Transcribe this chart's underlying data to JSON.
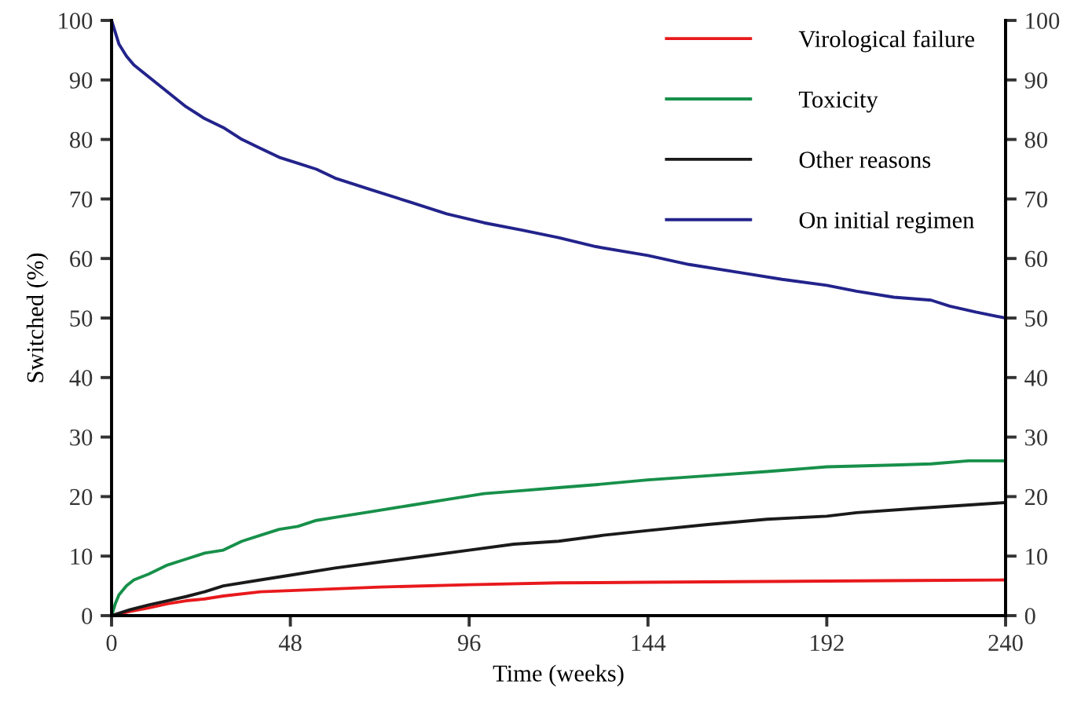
{
  "chart_data": {
    "type": "line",
    "xlabel": "Time (weeks)",
    "ylabel": "Switched (%)",
    "xlim": [
      0,
      240
    ],
    "xticks": [
      0,
      48,
      96,
      144,
      192,
      240
    ],
    "ylim": [
      0,
      100
    ],
    "yticks": [
      0,
      10,
      20,
      30,
      40,
      50,
      60,
      70,
      80,
      90,
      100
    ],
    "y2lim": [
      0,
      100
    ],
    "y2ticks": [
      0,
      10,
      20,
      30,
      40,
      50,
      60,
      70,
      80,
      90,
      100
    ],
    "grid": false,
    "legend": "top right",
    "marker": "none",
    "line_style": "solid",
    "series": [
      {
        "name": "Virological failure",
        "color": "#e8191c",
        "x": [
          0,
          5,
          10,
          15,
          20,
          25,
          30,
          40,
          48,
          60,
          72,
          96,
          120,
          144,
          168,
          192,
          216,
          240
        ],
        "values": [
          0,
          0.7,
          1.3,
          2,
          2.5,
          2.8,
          3.3,
          4,
          4.2,
          4.5,
          4.8,
          5.2,
          5.5,
          5.6,
          5.7,
          5.8,
          5.9,
          6
        ]
      },
      {
        "name": "Toxicity",
        "color": "#17904a",
        "x": [
          0,
          1,
          2,
          4,
          6,
          10,
          15,
          20,
          25,
          30,
          35,
          40,
          45,
          50,
          55,
          60,
          70,
          80,
          90,
          100,
          110,
          120,
          130,
          144,
          160,
          176,
          192,
          210,
          220,
          230,
          240
        ],
        "values": [
          0,
          2,
          3.5,
          5,
          6,
          7,
          8.5,
          9.5,
          10.5,
          11,
          12.5,
          13.5,
          14.5,
          15,
          16,
          16.5,
          17.5,
          18.5,
          19.5,
          20.5,
          21,
          21.5,
          22,
          22.8,
          23.5,
          24.2,
          25,
          25.3,
          25.5,
          26,
          26
        ]
      },
      {
        "name": "Other reasons",
        "color": "#1a1a1a",
        "x": [
          0,
          5,
          10,
          15,
          20,
          25,
          30,
          40,
          48,
          60,
          72,
          84,
          96,
          108,
          120,
          132,
          144,
          160,
          176,
          192,
          200,
          216,
          228,
          240
        ],
        "values": [
          0,
          1,
          1.8,
          2.5,
          3.2,
          4,
          5,
          6,
          6.8,
          8,
          9,
          10,
          11,
          12,
          12.5,
          13.5,
          14.3,
          15.3,
          16.2,
          16.7,
          17.3,
          18,
          18.5,
          19
        ]
      },
      {
        "name": "On initial regimen",
        "color": "#23238c",
        "x": [
          0,
          1,
          2,
          4,
          6,
          10,
          15,
          20,
          25,
          30,
          35,
          40,
          45,
          50,
          55,
          60,
          70,
          80,
          90,
          100,
          110,
          120,
          130,
          144,
          155,
          170,
          180,
          192,
          200,
          210,
          220,
          225,
          232,
          240
        ],
        "values": [
          100,
          98,
          96,
          94,
          92.5,
          90.5,
          88,
          85.5,
          83.5,
          82,
          80,
          78.5,
          77,
          76,
          75,
          73.5,
          71.5,
          69.5,
          67.5,
          66,
          64.8,
          63.5,
          62,
          60.5,
          59,
          57.5,
          56.5,
          55.5,
          54.5,
          53.5,
          53,
          52,
          51,
          50
        ]
      }
    ]
  }
}
